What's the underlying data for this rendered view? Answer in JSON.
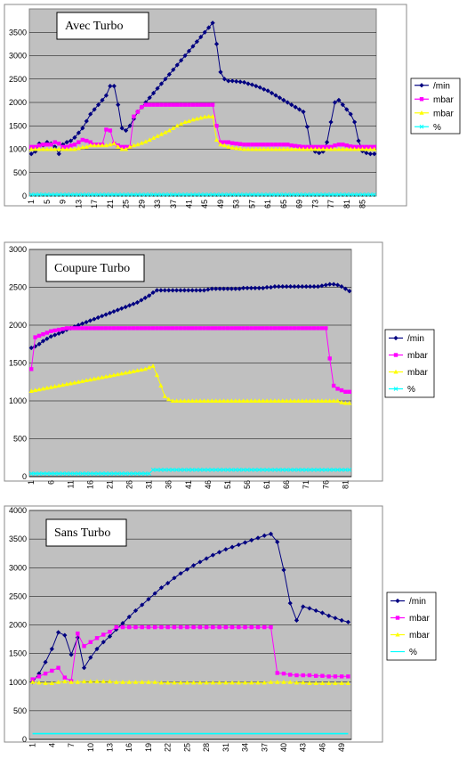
{
  "chart_data": [
    {
      "type": "line",
      "title": "Avec Turbo",
      "ylim": [
        0,
        4000
      ],
      "yticks": [
        0,
        500,
        1000,
        1500,
        2000,
        2500,
        3000,
        3500
      ],
      "xlabels": [
        1,
        5,
        9,
        13,
        17,
        21,
        25,
        29,
        33,
        37,
        41,
        45,
        49,
        53,
        57,
        61,
        65,
        69,
        73,
        77,
        81,
        85
      ],
      "n": 88,
      "grid": true,
      "legend_position": "right",
      "series": [
        {
          "name": "/min",
          "color": "#000080",
          "marker": "diamond",
          "values": [
            900,
            950,
            1120,
            1080,
            1150,
            1120,
            1050,
            900,
            1100,
            1150,
            1180,
            1250,
            1350,
            1450,
            1600,
            1750,
            1850,
            1950,
            2050,
            2150,
            2350,
            2350,
            1950,
            1450,
            1400,
            1500,
            1650,
            1800,
            1900,
            2000,
            2100,
            2200,
            2300,
            2400,
            2500,
            2600,
            2700,
            2800,
            2900,
            3000,
            3100,
            3200,
            3300,
            3400,
            3500,
            3600,
            3700,
            3250,
            2650,
            2500,
            2460,
            2460,
            2450,
            2440,
            2430,
            2400,
            2380,
            2350,
            2320,
            2280,
            2250,
            2200,
            2150,
            2100,
            2050,
            2000,
            1950,
            1900,
            1850,
            1800,
            1480,
            1000,
            950,
            920,
            950,
            1150,
            1580,
            2000,
            2050,
            1950,
            1850,
            1750,
            1580,
            1180,
            960,
            920,
            900,
            900
          ]
        },
        {
          "name": "mbar",
          "color": "#ff00ff",
          "marker": "square",
          "values": [
            1050,
            1050,
            1080,
            1100,
            1100,
            1100,
            1150,
            1120,
            1050,
            1050,
            1080,
            1100,
            1150,
            1200,
            1180,
            1150,
            1100,
            1100,
            1100,
            1420,
            1400,
            1120,
            1080,
            1050,
            1050,
            1050,
            1700,
            1800,
            1900,
            1950,
            1950,
            1950,
            1950,
            1950,
            1950,
            1950,
            1950,
            1950,
            1950,
            1950,
            1950,
            1950,
            1950,
            1950,
            1950,
            1950,
            1950,
            1500,
            1150,
            1150,
            1150,
            1130,
            1120,
            1110,
            1100,
            1100,
            1100,
            1100,
            1100,
            1100,
            1100,
            1100,
            1100,
            1100,
            1100,
            1100,
            1080,
            1070,
            1060,
            1050,
            1050,
            1050,
            1050,
            1050,
            1050,
            1050,
            1050,
            1080,
            1100,
            1100,
            1080,
            1060,
            1050,
            1050,
            1050,
            1050,
            1050,
            1050
          ]
        },
        {
          "name": "mbar",
          "color": "#ffff00",
          "marker": "triangle",
          "values": [
            1000,
            1000,
            1000,
            1000,
            1000,
            1000,
            1000,
            1000,
            1000,
            1000,
            1000,
            1000,
            1020,
            1040,
            1050,
            1080,
            1080,
            1080,
            1080,
            1080,
            1100,
            1120,
            1050,
            1000,
            1000,
            1050,
            1080,
            1100,
            1130,
            1160,
            1200,
            1240,
            1280,
            1320,
            1360,
            1400,
            1450,
            1500,
            1540,
            1580,
            1600,
            1630,
            1650,
            1670,
            1690,
            1700,
            1700,
            1200,
            1100,
            1080,
            1050,
            1030,
            1020,
            1010,
            1000,
            1000,
            1000,
            1000,
            1000,
            1000,
            1000,
            1000,
            1000,
            1000,
            1000,
            1000,
            1000,
            1000,
            1000,
            1000,
            1000,
            1000,
            1000,
            1000,
            1000,
            1000,
            1000,
            1000,
            1000,
            1000,
            1000,
            1000,
            1000,
            1000,
            1000,
            1000,
            1000,
            1000
          ]
        },
        {
          "name": "%",
          "color": "#00ffff",
          "marker": "x",
          "values": [
            30,
            30,
            30,
            30,
            30,
            30,
            30,
            30,
            30,
            30,
            30,
            30,
            30,
            30,
            30,
            30,
            30,
            30,
            30,
            30,
            30,
            30,
            30,
            30,
            30,
            30,
            30,
            30,
            30,
            30,
            30,
            30,
            30,
            30,
            30,
            30,
            30,
            30,
            30,
            30,
            30,
            30,
            30,
            30,
            30,
            30,
            30,
            30,
            30,
            30,
            30,
            30,
            30,
            30,
            30,
            30,
            30,
            30,
            30,
            30,
            30,
            30,
            30,
            30,
            30,
            30,
            30,
            30,
            30,
            30,
            30,
            30,
            30,
            30,
            30,
            30,
            30,
            30,
            30,
            30,
            30,
            30,
            30,
            30,
            30,
            30,
            30,
            30
          ]
        }
      ]
    },
    {
      "type": "line",
      "title": "Coupure Turbo",
      "ylim": [
        0,
        3000
      ],
      "yticks": [
        0,
        500,
        1000,
        1500,
        2000,
        2500,
        3000
      ],
      "xlabels": [
        1,
        6,
        11,
        16,
        21,
        26,
        31,
        36,
        41,
        46,
        51,
        56,
        61,
        66,
        71,
        76,
        81
      ],
      "n": 82,
      "grid": true,
      "legend_position": "right",
      "series": [
        {
          "name": "/min",
          "color": "#000080",
          "marker": "diamond",
          "values": [
            1700,
            1720,
            1750,
            1790,
            1820,
            1850,
            1870,
            1890,
            1910,
            1940,
            1960,
            1980,
            2000,
            2020,
            2040,
            2060,
            2080,
            2100,
            2120,
            2140,
            2160,
            2180,
            2200,
            2220,
            2240,
            2260,
            2280,
            2300,
            2330,
            2360,
            2390,
            2430,
            2460,
            2460,
            2460,
            2460,
            2460,
            2460,
            2460,
            2460,
            2460,
            2460,
            2460,
            2460,
            2460,
            2470,
            2480,
            2480,
            2480,
            2480,
            2480,
            2480,
            2480,
            2480,
            2490,
            2490,
            2490,
            2490,
            2490,
            2490,
            2500,
            2500,
            2510,
            2510,
            2510,
            2510,
            2510,
            2510,
            2510,
            2510,
            2510,
            2510,
            2510,
            2510,
            2520,
            2530,
            2540,
            2540,
            2530,
            2510,
            2480,
            2450
          ]
        },
        {
          "name": "mbar",
          "color": "#ff00ff",
          "marker": "square",
          "values": [
            1420,
            1840,
            1860,
            1880,
            1900,
            1920,
            1930,
            1940,
            1950,
            1960,
            1960,
            1960,
            1960,
            1960,
            1960,
            1960,
            1960,
            1960,
            1960,
            1960,
            1960,
            1960,
            1960,
            1960,
            1960,
            1960,
            1960,
            1960,
            1960,
            1960,
            1960,
            1960,
            1960,
            1960,
            1960,
            1960,
            1960,
            1960,
            1960,
            1960,
            1960,
            1960,
            1960,
            1960,
            1960,
            1960,
            1960,
            1960,
            1960,
            1960,
            1960,
            1960,
            1960,
            1960,
            1960,
            1960,
            1960,
            1960,
            1960,
            1960,
            1960,
            1960,
            1960,
            1960,
            1960,
            1960,
            1960,
            1960,
            1960,
            1960,
            1960,
            1960,
            1960,
            1960,
            1960,
            1960,
            1560,
            1200,
            1160,
            1140,
            1120,
            1120
          ]
        },
        {
          "name": "mbar",
          "color": "#ffff00",
          "marker": "triangle",
          "values": [
            1130,
            1140,
            1150,
            1160,
            1170,
            1180,
            1190,
            1200,
            1210,
            1220,
            1230,
            1240,
            1250,
            1260,
            1270,
            1280,
            1290,
            1300,
            1310,
            1320,
            1330,
            1340,
            1350,
            1360,
            1370,
            1380,
            1390,
            1400,
            1410,
            1420,
            1440,
            1460,
            1340,
            1200,
            1060,
            1020,
            1000,
            1000,
            1000,
            1000,
            1000,
            1000,
            1000,
            1000,
            1000,
            1000,
            1000,
            1000,
            1000,
            1000,
            1000,
            1000,
            1000,
            1000,
            1000,
            1000,
            1000,
            1000,
            1000,
            1000,
            1000,
            1000,
            1000,
            1000,
            1000,
            1000,
            1000,
            1000,
            1000,
            1000,
            1000,
            1000,
            1000,
            1000,
            1000,
            1000,
            1000,
            1000,
            1000,
            980,
            970,
            970
          ]
        },
        {
          "name": "%",
          "color": "#00ffff",
          "marker": "x",
          "values": [
            40,
            40,
            40,
            40,
            40,
            40,
            40,
            40,
            40,
            40,
            40,
            40,
            40,
            40,
            40,
            40,
            40,
            40,
            40,
            40,
            40,
            40,
            40,
            40,
            40,
            40,
            40,
            40,
            40,
            40,
            40,
            90,
            90,
            90,
            90,
            90,
            90,
            90,
            90,
            90,
            90,
            90,
            90,
            90,
            90,
            90,
            90,
            90,
            90,
            90,
            90,
            90,
            90,
            90,
            90,
            90,
            90,
            90,
            90,
            90,
            90,
            90,
            90,
            90,
            90,
            90,
            90,
            90,
            90,
            90,
            90,
            90,
            90,
            90,
            90,
            90,
            90,
            90,
            90,
            90,
            90,
            90
          ]
        }
      ]
    },
    {
      "type": "line",
      "title": "Sans Turbo",
      "ylim": [
        0,
        4000
      ],
      "yticks": [
        0,
        500,
        1000,
        1500,
        2000,
        2500,
        3000,
        3500,
        4000
      ],
      "xlabels": [
        1,
        4,
        7,
        10,
        13,
        16,
        19,
        22,
        25,
        28,
        31,
        34,
        37,
        40,
        43,
        46,
        49
      ],
      "n": 50,
      "grid": true,
      "legend_position": "right",
      "series": [
        {
          "name": "/min",
          "color": "#000080",
          "marker": "diamond",
          "values": [
            1000,
            1150,
            1350,
            1580,
            1870,
            1820,
            1480,
            1780,
            1250,
            1430,
            1580,
            1700,
            1800,
            1920,
            2030,
            2140,
            2250,
            2350,
            2450,
            2550,
            2650,
            2730,
            2820,
            2900,
            2970,
            3040,
            3100,
            3160,
            3220,
            3270,
            3320,
            3360,
            3400,
            3440,
            3480,
            3520,
            3560,
            3590,
            3450,
            2960,
            2380,
            2080,
            2320,
            2290,
            2250,
            2210,
            2160,
            2120,
            2080,
            2050
          ]
        },
        {
          "name": "mbar",
          "color": "#ff00ff",
          "marker": "square",
          "values": [
            1050,
            1100,
            1150,
            1200,
            1250,
            1080,
            1020,
            1850,
            1630,
            1700,
            1770,
            1830,
            1880,
            1960,
            1960,
            1960,
            1960,
            1960,
            1960,
            1960,
            1960,
            1960,
            1960,
            1960,
            1960,
            1960,
            1960,
            1960,
            1960,
            1960,
            1960,
            1960,
            1960,
            1960,
            1960,
            1960,
            1960,
            1960,
            1160,
            1150,
            1130,
            1120,
            1120,
            1120,
            1110,
            1110,
            1100,
            1100,
            1100,
            1100
          ]
        },
        {
          "name": "mbar",
          "color": "#ffff00",
          "marker": "triangle",
          "values": [
            1000,
            990,
            980,
            980,
            1000,
            1010,
            1000,
            1000,
            1010,
            1010,
            1010,
            1010,
            1010,
            1000,
            1000,
            1000,
            1000,
            1000,
            1000,
            1000,
            990,
            990,
            990,
            990,
            990,
            990,
            990,
            990,
            990,
            990,
            990,
            990,
            990,
            990,
            990,
            990,
            990,
            1000,
            1000,
            1000,
            1000,
            990,
            990,
            980,
            980,
            980,
            980,
            980,
            980,
            980
          ]
        },
        {
          "name": "%",
          "color": "#00ffff",
          "marker": "line",
          "values": [
            100,
            100,
            100,
            100,
            100,
            100,
            100,
            100,
            100,
            100,
            100,
            100,
            100,
            100,
            100,
            100,
            100,
            100,
            100,
            100,
            100,
            100,
            100,
            100,
            100,
            100,
            100,
            100,
            100,
            100,
            100,
            100,
            100,
            100,
            100,
            100,
            100,
            100,
            100,
            100,
            100,
            100,
            100,
            100,
            100,
            100,
            100,
            100,
            100,
            100
          ]
        }
      ]
    }
  ]
}
